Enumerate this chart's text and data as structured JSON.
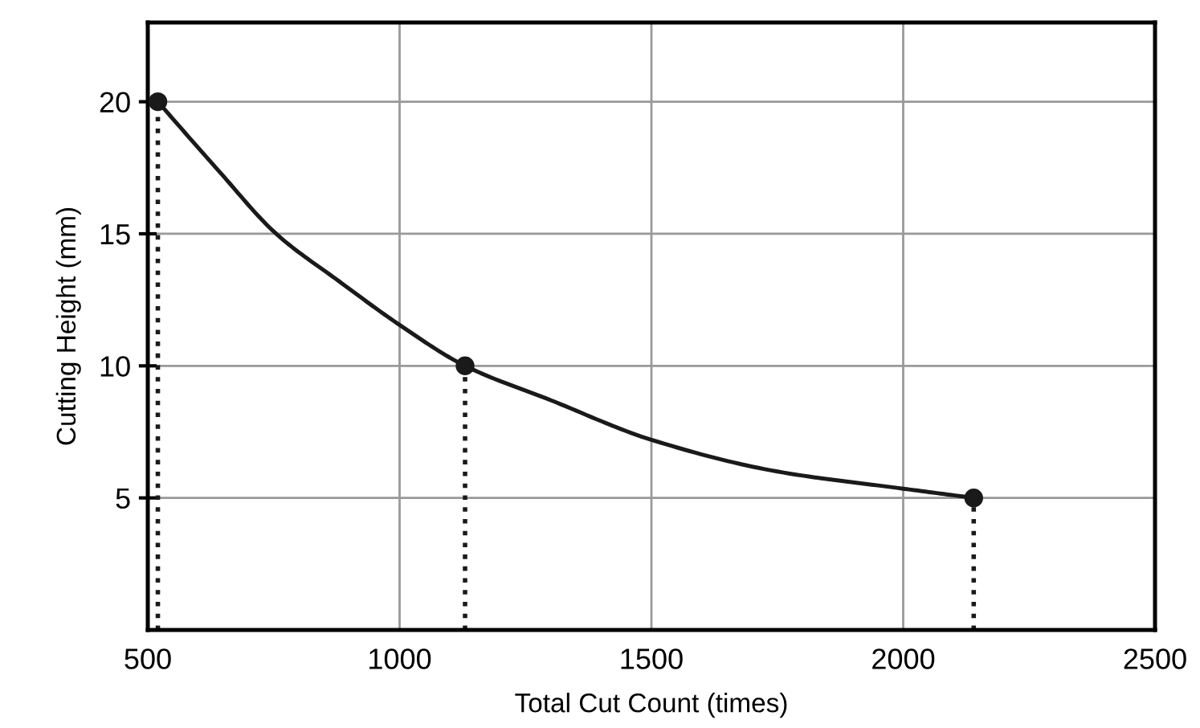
{
  "chart_data": {
    "type": "line",
    "xlabel": "Total Cut Count (times)",
    "ylabel": "Cutting Height (mm)",
    "xlim": [
      500,
      2500
    ],
    "xticks": [
      500,
      1000,
      1500,
      2000,
      2500
    ],
    "ylim": [
      0,
      23
    ],
    "yticks": [
      5,
      10,
      15,
      20
    ],
    "grid": true,
    "series": [
      {
        "color": "#1a1a1a",
        "marker": "none",
        "line_style": "solid",
        "x": [
          520,
          640,
          755,
          880,
          1000,
          1130,
          1300,
          1500,
          1750,
          2000,
          2140
        ],
        "values": [
          20,
          17.4,
          15,
          13.2,
          11.55,
          10,
          8.7,
          7.2,
          6.0,
          5.35,
          5
        ]
      },
      {
        "type": "scatter",
        "color": "#1a1a1a",
        "marker": "circle",
        "x": [
          520,
          1130,
          2140
        ],
        "values": [
          20,
          10,
          5
        ]
      }
    ],
    "ref_lines": [
      {
        "axis": "x",
        "value": 520,
        "color": "#1a1a1a",
        "line_style": "dotted"
      },
      {
        "axis": "x",
        "value": 1130,
        "color": "#1a1a1a",
        "line_style": "dotted"
      },
      {
        "axis": "x",
        "value": 2140,
        "color": "#1a1a1a",
        "line_style": "dotted"
      }
    ]
  }
}
